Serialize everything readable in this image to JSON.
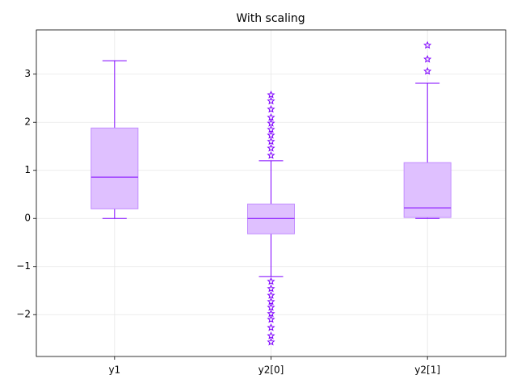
{
  "chart_data": {
    "type": "box",
    "title": "With scaling",
    "categories": [
      "y1",
      "y2[0]",
      "y2[1]"
    ],
    "color": "#7f00ff",
    "box_fill": "#dfc0ff",
    "box_edge": "#c28cff",
    "grid": true,
    "ylim": [
      -2.87,
      3.92
    ],
    "yticks": [
      {
        "value": -2,
        "label": "−2"
      },
      {
        "value": -1,
        "label": "−1"
      },
      0,
      1,
      2,
      3
    ],
    "boxes": [
      {
        "whislo": 0.0,
        "q1": 0.2,
        "med": 0.86,
        "q3": 1.88,
        "whishi": 3.28,
        "fliers": []
      },
      {
        "whislo": -1.21,
        "q1": -0.32,
        "med": 0.0,
        "q3": 0.3,
        "whishi": 1.2,
        "fliers": [
          1.31,
          1.46,
          1.6,
          1.73,
          1.85,
          1.98,
          2.1,
          2.27,
          2.44,
          2.57,
          -1.31,
          -1.46,
          -1.6,
          -1.73,
          -1.85,
          -1.98,
          -2.1,
          -2.27,
          -2.44,
          -2.57
        ]
      },
      {
        "whislo": 0.0,
        "q1": 0.02,
        "med": 0.22,
        "q3": 1.16,
        "whishi": 2.81,
        "fliers": [
          3.06,
          3.31,
          3.6
        ]
      }
    ]
  }
}
